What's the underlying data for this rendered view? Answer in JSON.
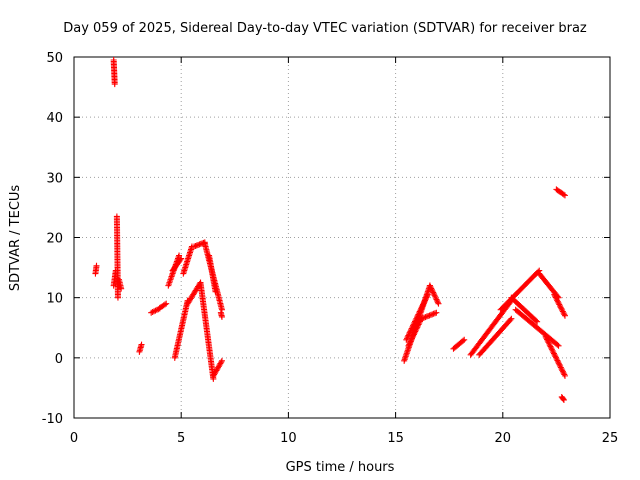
{
  "chart_data": {
    "type": "scatter",
    "title": "Day 059 of 2025, Sidereal Day-to-day VTEC variation (SDTVAR) for receiver braz",
    "xlabel": "GPS time / hours",
    "ylabel": "SDTVAR / TECUs",
    "xlim": [
      0,
      25
    ],
    "ylim": [
      -10,
      50
    ],
    "x_ticks": [
      "0",
      "5",
      "10",
      "15",
      "20",
      "25"
    ],
    "y_ticks": [
      "-10",
      "0",
      "10",
      "20",
      "30",
      "40",
      "50"
    ],
    "x_tick_values": [
      0,
      5,
      10,
      15,
      20,
      25
    ],
    "y_tick_values": [
      -10,
      0,
      10,
      20,
      30,
      40,
      50
    ],
    "grid": true,
    "marker": "+",
    "color": "#ff0000",
    "segments": [
      {
        "x0": 1.0,
        "x1": 1.05,
        "y0": 14.0,
        "y1": 15.3
      },
      {
        "x0": 1.85,
        "x1": 1.9,
        "y0": 49.5,
        "y1": 45.5
      },
      {
        "x0": 1.85,
        "x1": 1.95,
        "y0": 12.0,
        "y1": 14.5
      },
      {
        "x0": 2.0,
        "x1": 2.05,
        "y0": 23.5,
        "y1": 10.0
      },
      {
        "x0": 2.1,
        "x1": 2.2,
        "y0": 13.0,
        "y1": 11.5
      },
      {
        "x0": 3.05,
        "x1": 3.15,
        "y0": 1.0,
        "y1": 2.2
      },
      {
        "x0": 3.6,
        "x1": 4.0,
        "y0": 7.5,
        "y1": 8.2
      },
      {
        "x0": 4.0,
        "x1": 4.3,
        "y0": 8.3,
        "y1": 9.0
      },
      {
        "x0": 4.4,
        "x1": 4.9,
        "y0": 12.0,
        "y1": 17.0
      },
      {
        "x0": 4.6,
        "x1": 5.0,
        "y0": 14.5,
        "y1": 16.5
      },
      {
        "x0": 4.7,
        "x1": 5.3,
        "y0": 0.0,
        "y1": 9.5
      },
      {
        "x0": 5.1,
        "x1": 5.5,
        "y0": 14.0,
        "y1": 18.5
      },
      {
        "x0": 5.3,
        "x1": 5.9,
        "y0": 9.0,
        "y1": 12.5
      },
      {
        "x0": 5.6,
        "x1": 6.1,
        "y0": 18.5,
        "y1": 19.2
      },
      {
        "x0": 5.9,
        "x1": 6.5,
        "y0": 12.5,
        "y1": -3.5
      },
      {
        "x0": 6.1,
        "x1": 6.9,
        "y0": 19.0,
        "y1": 8.0
      },
      {
        "x0": 6.3,
        "x1": 6.6,
        "y0": 17.0,
        "y1": 11.0
      },
      {
        "x0": 6.5,
        "x1": 6.9,
        "y0": -3.0,
        "y1": -0.5
      },
      {
        "x0": 6.85,
        "x1": 6.9,
        "y0": 7.5,
        "y1": 6.8
      },
      {
        "x0": 15.4,
        "x1": 16.6,
        "y0": -0.5,
        "y1": 12.0
      },
      {
        "x0": 15.5,
        "x1": 16.5,
        "y0": 3.0,
        "y1": 10.5
      },
      {
        "x0": 15.6,
        "x1": 16.2,
        "y0": 2.0,
        "y1": 6.5
      },
      {
        "x0": 16.6,
        "x1": 17.0,
        "y0": 12.0,
        "y1": 9.0
      },
      {
        "x0": 16.2,
        "x1": 16.9,
        "y0": 6.5,
        "y1": 7.5
      },
      {
        "x0": 17.7,
        "x1": 18.2,
        "y0": 1.5,
        "y1": 3.0
      },
      {
        "x0": 18.5,
        "x1": 20.4,
        "y0": 0.5,
        "y1": 9.5
      },
      {
        "x0": 18.9,
        "x1": 20.4,
        "y0": 0.5,
        "y1": 6.5
      },
      {
        "x0": 19.9,
        "x1": 21.7,
        "y0": 8.0,
        "y1": 14.5
      },
      {
        "x0": 20.4,
        "x1": 21.6,
        "y0": 10.0,
        "y1": 6.0
      },
      {
        "x0": 20.6,
        "x1": 22.6,
        "y0": 8.0,
        "y1": 2.0
      },
      {
        "x0": 21.7,
        "x1": 22.6,
        "y0": 14.0,
        "y1": 10.0
      },
      {
        "x0": 22.4,
        "x1": 22.9,
        "y0": 10.5,
        "y1": 7.0
      },
      {
        "x0": 22.0,
        "x1": 22.9,
        "y0": 3.5,
        "y1": -3.0
      },
      {
        "x0": 22.5,
        "x1": 22.9,
        "y0": 28.0,
        "y1": 27.0
      },
      {
        "x0": 22.75,
        "x1": 22.85,
        "y0": -6.5,
        "y1": -7.0
      }
    ]
  }
}
